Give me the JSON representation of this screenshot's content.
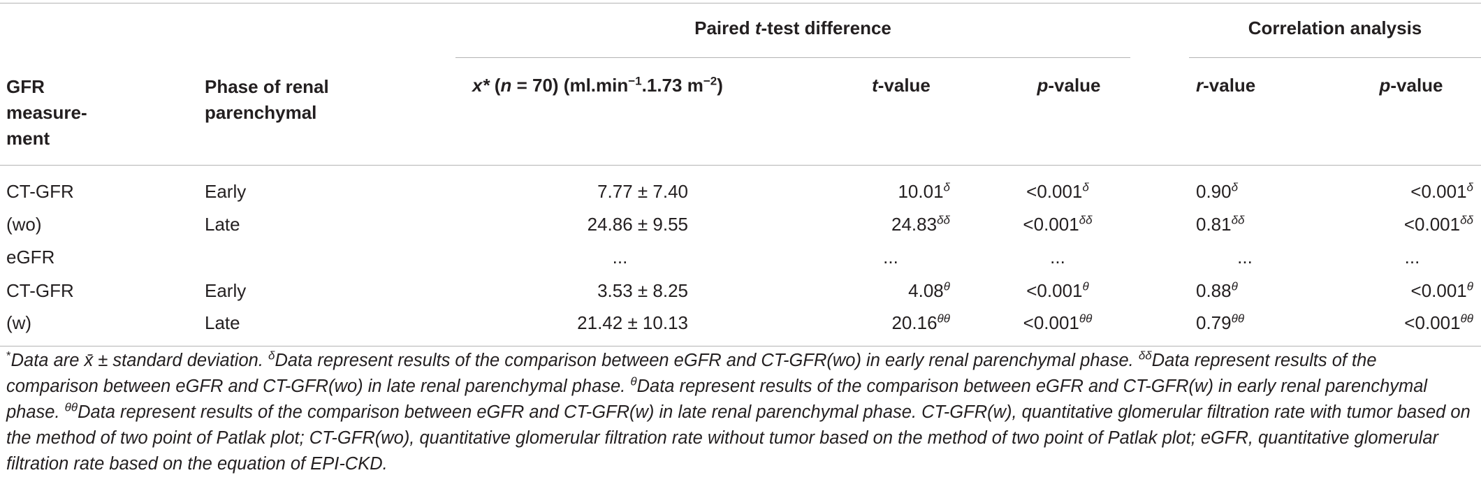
{
  "header": {
    "group_paired": {
      "pre": "Paired ",
      "italic": "t",
      "post": "-test difference"
    },
    "group_corr": "Correlation analysis",
    "col_gfr": [
      "GFR",
      "measure-",
      "ment"
    ],
    "col_phase": [
      "Phase of renal",
      "parenchymal"
    ],
    "col_x": {
      "var": "x*",
      "paren_open": " (",
      "n": "n",
      "n_eq": " = 70) (ml.min",
      "sup1": "−1",
      "mid": ".1.73 m",
      "sup2": "−2",
      "close": ")"
    },
    "col_t": {
      "italic": "t",
      "rest": "-value"
    },
    "col_p1": {
      "italic": "p",
      "rest": "-value"
    },
    "col_r": {
      "italic": "r",
      "rest": "-value"
    },
    "col_p2": {
      "italic": "p",
      "rest": "-value"
    }
  },
  "rows": [
    {
      "gfr": "CT-GFR",
      "phase": "Early",
      "x": "7.77 ± 7.40",
      "t": "10.01",
      "t_sup": "δ",
      "p1": "<0.001",
      "p1_sup": "δ",
      "r": "0.90",
      "r_sup": "δ",
      "p2": "<0.001",
      "p2_sup": "δ"
    },
    {
      "gfr": "(wo)",
      "phase": "Late",
      "x": "24.86 ± 9.55",
      "t": "24.83",
      "t_sup": "δδ",
      "p1": "<0.001",
      "p1_sup": "δδ",
      "r": "0.81",
      "r_sup": "δδ",
      "p2": "<0.001",
      "p2_sup": "δδ"
    },
    {
      "gfr": "eGFR",
      "phase": "",
      "x": "...",
      "t": "...",
      "t_sup": "",
      "p1": "...",
      "p1_sup": "",
      "r": "...",
      "r_sup": "",
      "p2": "...",
      "p2_sup": ""
    },
    {
      "gfr": "CT-GFR",
      "phase": "Early",
      "x": "3.53 ± 8.25",
      "t": "4.08",
      "t_sup": "θ",
      "p1": "<0.001",
      "p1_sup": "θ",
      "r": "0.88",
      "r_sup": "θ",
      "p2": "<0.001",
      "p2_sup": "θ"
    },
    {
      "gfr": "(w)",
      "phase": "Late",
      "x": "21.42 ± 10.13",
      "t": "20.16",
      "t_sup": "θθ",
      "p1": "<0.001",
      "p1_sup": "θθ",
      "r": "0.79",
      "r_sup": "θθ",
      "p2": "<0.001",
      "p2_sup": "θθ"
    }
  ],
  "footnote": {
    "s0": "*",
    "s1": "Data are x̄ ± standard deviation. ",
    "d1": "δ",
    "s2": "Data represent results of the comparison between eGFR and CT-GFR(wo) in early renal parenchymal phase. ",
    "d2": "δδ",
    "s3": "Data represent results of the comparison between eGFR and CT-GFR(wo) in late renal parenchymal phase. ",
    "d3": "θ",
    "s4": "Data represent results of the comparison between eGFR and CT-GFR(w) in early renal parenchymal phase. ",
    "d4": "θθ",
    "s5": "Data represent results of the comparison between eGFR and CT-GFR(w) in late renal parenchymal phase. CT-GFR(w), quantitative glomerular filtration rate with tumor based on the method of two point of Patlak plot; CT-GFR(wo), quantitative glomerular filtration rate without tumor based on the method of two point of Patlak plot; eGFR, quantitative glomerular filtration rate based on the equation of EPI-CKD."
  },
  "colors": {
    "text": "#231f20",
    "rule": "#b3b3b3"
  }
}
